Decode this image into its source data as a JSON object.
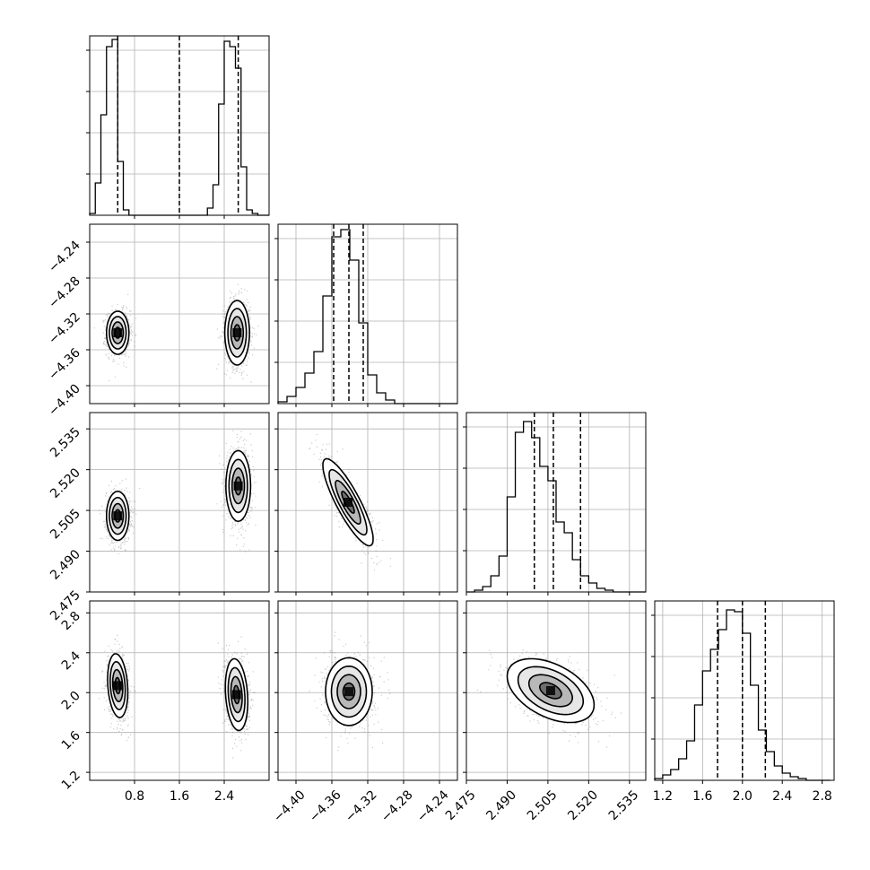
{
  "chart_data": {
    "type": "corner",
    "description_note": "",
    "params": [
      {
        "id": "p0",
        "range": [
          0.0,
          3.2
        ],
        "ticks": [
          0.8,
          1.6,
          2.4
        ],
        "tick_labels": [
          "0.8",
          "1.6",
          "2.4"
        ],
        "quantiles": [
          0.5,
          1.6,
          2.65
        ],
        "hist": {
          "edges": [
            0.0,
            0.1,
            0.2,
            0.3,
            0.4,
            0.5,
            0.6,
            0.7,
            0.8,
            0.9,
            1.0,
            1.1,
            1.2,
            1.3,
            1.4,
            1.5,
            1.6,
            1.7,
            1.8,
            1.9,
            2.0,
            2.1,
            2.2,
            2.3,
            2.4,
            2.5,
            2.6,
            2.7,
            2.8,
            2.9,
            3.0,
            3.1,
            3.2
          ],
          "counts": [
            0.01,
            0.18,
            0.56,
            0.94,
            0.98,
            0.3,
            0.03,
            0.0,
            0,
            0,
            0,
            0,
            0,
            0,
            0,
            0,
            0,
            0,
            0,
            0,
            0,
            0.04,
            0.17,
            0.62,
            0.97,
            0.94,
            0.82,
            0.27,
            0.03,
            0.01,
            0,
            0
          ]
        }
      },
      {
        "id": "p1",
        "range": [
          -4.42,
          -4.22
        ],
        "ticks": [
          -4.4,
          -4.36,
          -4.32,
          -4.28,
          -4.24
        ],
        "tick_labels": [
          "−4.40",
          "−4.36",
          "−4.32",
          "−4.28",
          "−4.24"
        ],
        "quantiles": [
          -4.358,
          -4.341,
          -4.325
        ],
        "hist": {
          "edges": [
            -4.42,
            -4.41,
            -4.4,
            -4.39,
            -4.38,
            -4.37,
            -4.36,
            -4.35,
            -4.34,
            -4.33,
            -4.32,
            -4.31,
            -4.3,
            -4.29,
            -4.28,
            -4.27,
            -4.26,
            -4.25,
            -4.24,
            -4.23,
            -4.22
          ],
          "counts": [
            0.01,
            0.04,
            0.09,
            0.17,
            0.29,
            0.6,
            0.93,
            0.97,
            0.8,
            0.45,
            0.16,
            0.06,
            0.02,
            0.0,
            0,
            0,
            0,
            0,
            0,
            0
          ]
        }
      },
      {
        "id": "p2",
        "range": [
          2.475,
          2.541
        ],
        "ticks": [
          2.475,
          2.49,
          2.505,
          2.52,
          2.535
        ],
        "tick_labels": [
          "2.475",
          "2.490",
          "2.505",
          "2.520",
          "2.535"
        ],
        "quantiles": [
          2.5,
          2.507,
          2.517
        ],
        "hist": {
          "edges": [
            2.475,
            2.478,
            2.481,
            2.484,
            2.487,
            2.49,
            2.493,
            2.496,
            2.499,
            2.502,
            2.505,
            2.508,
            2.511,
            2.514,
            2.517,
            2.52,
            2.523,
            2.526,
            2.529,
            2.532,
            2.535,
            2.538,
            2.541
          ],
          "counts": [
            0.0,
            0.01,
            0.03,
            0.09,
            0.2,
            0.53,
            0.89,
            0.95,
            0.86,
            0.7,
            0.62,
            0.39,
            0.33,
            0.18,
            0.09,
            0.05,
            0.02,
            0.01,
            0,
            0,
            0,
            0
          ]
        }
      },
      {
        "id": "p3",
        "range": [
          1.12,
          2.92
        ],
        "ticks": [
          1.2,
          1.6,
          2.0,
          2.4,
          2.8
        ],
        "tick_labels": [
          "1.2",
          "1.6",
          "2.0",
          "2.4",
          "2.8"
        ],
        "quantiles": [
          1.75,
          2.0,
          2.23
        ],
        "hist": {
          "edges": [
            1.12,
            1.2,
            1.28,
            1.36,
            1.44,
            1.52,
            1.6,
            1.68,
            1.76,
            1.84,
            1.92,
            2.0,
            2.08,
            2.16,
            2.24,
            2.32,
            2.4,
            2.48,
            2.56,
            2.64,
            2.72,
            2.8,
            2.88
          ],
          "counts": [
            0.01,
            0.03,
            0.06,
            0.12,
            0.22,
            0.42,
            0.61,
            0.73,
            0.84,
            0.95,
            0.94,
            0.82,
            0.53,
            0.28,
            0.16,
            0.08,
            0.04,
            0.02,
            0.01,
            0,
            0,
            0
          ]
        }
      }
    ],
    "pairs": [
      {
        "x": "p0",
        "y": "p1",
        "clusters": [
          {
            "mean": [
              0.5,
              -4.341
            ],
            "sd": [
              0.1,
              0.012
            ],
            "rho": 0.0
          },
          {
            "mean": [
              2.63,
              -4.341
            ],
            "sd": [
              0.11,
              0.018
            ],
            "rho": 0.0
          }
        ]
      },
      {
        "x": "p0",
        "y": "p2",
        "clusters": [
          {
            "mean": [
              0.5,
              2.503
            ],
            "sd": [
              0.1,
              0.0045
            ],
            "rho": 0.0
          },
          {
            "mean": [
              2.65,
              2.514
            ],
            "sd": [
              0.11,
              0.0065
            ],
            "rho": 0.0
          }
        ]
      },
      {
        "x": "p0",
        "y": "p3",
        "clusters": [
          {
            "mean": [
              0.5,
              2.07
            ],
            "sd": [
              0.09,
              0.16
            ],
            "rho": -0.2
          },
          {
            "mean": [
              2.62,
              1.98
            ],
            "sd": [
              0.1,
              0.18
            ],
            "rho": -0.2
          }
        ]
      },
      {
        "x": "p1",
        "y": "p2",
        "clusters": [
          {
            "mean": [
              -4.342,
              2.508
            ],
            "sd": [
              0.014,
              0.008
            ],
            "rho": -0.85
          }
        ]
      },
      {
        "x": "p1",
        "y": "p3",
        "clusters": [
          {
            "mean": [
              -4.341,
              2.01
            ],
            "sd": [
              0.013,
              0.17
            ],
            "rho": 0.0
          }
        ]
      },
      {
        "x": "p2",
        "y": "p3",
        "clusters": [
          {
            "mean": [
              2.506,
              2.02
            ],
            "sd": [
              0.008,
              0.16
            ],
            "rho": -0.45
          }
        ]
      }
    ],
    "contour_levels_sigma": [
      0.5,
      1.0,
      1.5,
      2.0
    ],
    "grid": true,
    "legend": "none"
  }
}
